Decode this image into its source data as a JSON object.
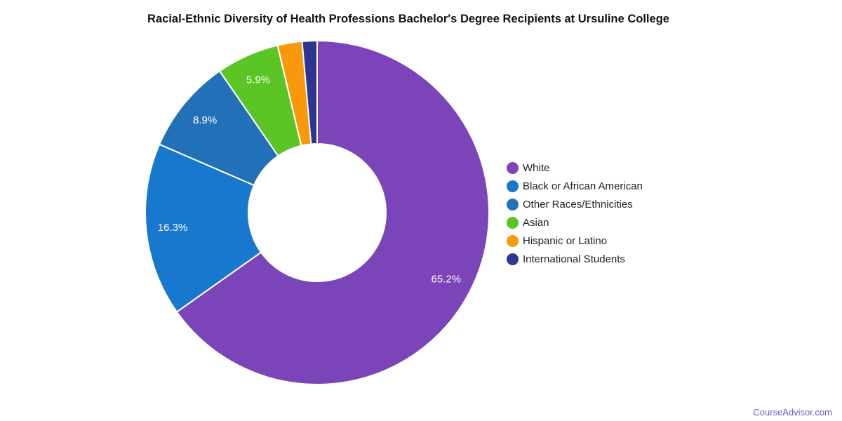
{
  "title": "Racial-Ethnic Diversity of Health Professions Bachelor's Degree Recipients at Ursuline College",
  "footer": {
    "link_text": "CourseAdvisor.com",
    "link_color": "#7455C8"
  },
  "chart_data": {
    "type": "pie",
    "subtype": "donut",
    "title": "Racial-Ethnic Diversity of Health Professions Bachelor's Degree Recipients at Ursuline College",
    "legend_position": "right",
    "direction": "clockwise",
    "start_angle_deg": 0,
    "inner_radius_ratio": 0.4,
    "labels": [
      "White",
      "Black or African American",
      "Other Races/Ethnicities",
      "Asian",
      "Hispanic or Latino",
      "International Students"
    ],
    "values": [
      65.2,
      16.3,
      8.9,
      5.9,
      2.3,
      1.4
    ],
    "value_labels": [
      "65.2%",
      "16.3%",
      "8.9%",
      "5.9%",
      "",
      ""
    ],
    "colors": [
      "#7B44B8",
      "#1878CE",
      "#2271B8",
      "#5BC526",
      "#F8980B",
      "#2D3793"
    ],
    "slice_label_color": "#ffffff",
    "background_color": "#ffffff"
  }
}
